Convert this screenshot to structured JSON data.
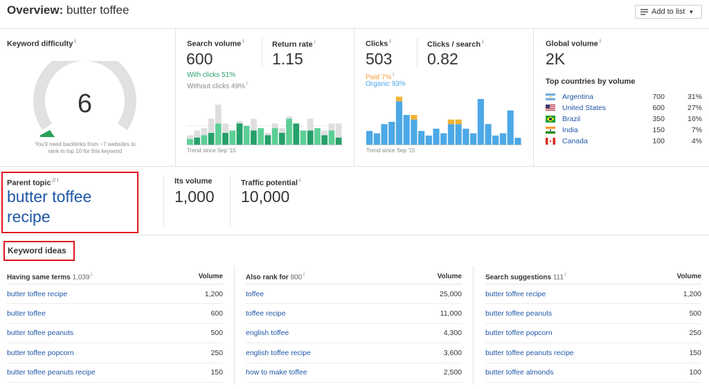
{
  "header": {
    "title_prefix": "Overview:",
    "keyword": "butter toffee",
    "add_to_list": "Add to list"
  },
  "keyword_difficulty": {
    "label": "Keyword difficulty",
    "value": "6",
    "gauge_fraction": 0.06,
    "note_line1": "You'll need backlinks from ~7 websites to",
    "note_line2": "rank in top 10 for this keyword"
  },
  "search_volume": {
    "label": "Search volume",
    "value": "600",
    "with_clicks": "With clicks 51%",
    "without_clicks": "Without clicks 49%",
    "return_rate_label": "Return rate",
    "return_rate": "1.15",
    "trend_caption": "Trend since Sep '15",
    "bars_total": [
      0.2,
      0.3,
      0.35,
      0.55,
      0.85,
      0.45,
      0.3,
      0.5,
      0.4,
      0.55,
      0.35,
      0.25,
      0.45,
      0.35,
      0.6,
      0.45,
      0.3,
      0.55,
      0.35,
      0.3,
      0.45,
      0.45
    ],
    "bars_clicks": [
      0.12,
      0.15,
      0.2,
      0.25,
      0.45,
      0.25,
      0.3,
      0.45,
      0.4,
      0.3,
      0.35,
      0.2,
      0.35,
      0.25,
      0.55,
      0.45,
      0.3,
      0.3,
      0.35,
      0.2,
      0.3,
      0.15
    ]
  },
  "clicks": {
    "label": "Clicks",
    "value": "503",
    "paid": "Paid 7%",
    "organic": "Organic 93%",
    "per_search_label": "Clicks / search",
    "per_search": "0.82",
    "trend_caption": "Trend since Sep '15",
    "bars_organic": [
      0.3,
      0.25,
      0.45,
      0.5,
      0.95,
      0.65,
      0.55,
      0.3,
      0.2,
      0.35,
      0.25,
      0.45,
      0.45,
      0.35,
      0.25,
      1.0,
      0.45,
      0.2,
      0.25,
      0.75,
      0.15
    ],
    "bars_paid": [
      0,
      0,
      0,
      0,
      0.1,
      0,
      0.1,
      0,
      0,
      0,
      0,
      0.1,
      0.1,
      0,
      0,
      0,
      0,
      0,
      0,
      0,
      0
    ]
  },
  "global_volume": {
    "label": "Global volume",
    "value": "2K",
    "countries_title": "Top countries by volume",
    "countries": [
      {
        "name": "Argentina",
        "volume": "700",
        "pct": "31%",
        "flag": "argentina"
      },
      {
        "name": "United States",
        "volume": "600",
        "pct": "27%",
        "flag": "united-states"
      },
      {
        "name": "Brazil",
        "volume": "350",
        "pct": "16%",
        "flag": "brazil"
      },
      {
        "name": "India",
        "volume": "150",
        "pct": "7%",
        "flag": "india"
      },
      {
        "name": "Canada",
        "volume": "100",
        "pct": "4%",
        "flag": "canada"
      }
    ]
  },
  "parent_topic": {
    "label": "Parent topic",
    "beta": "β",
    "line1": "butter toffee",
    "line2": "recipe",
    "its_volume_label": "Its volume",
    "its_volume": "1,000",
    "traffic_potential_label": "Traffic potential",
    "traffic_potential": "10,000"
  },
  "keyword_ideas": {
    "title": "Keyword ideas",
    "volume_header": "Volume",
    "columns": [
      {
        "title": "Having same terms",
        "count": "1,039",
        "rows": [
          [
            "butter toffee recipe",
            "1,200"
          ],
          [
            "butter toffee",
            "600"
          ],
          [
            "butter toffee peanuts",
            "500"
          ],
          [
            "butter toffee popcorn",
            "250"
          ],
          [
            "butter toffee peanuts recipe",
            "150"
          ]
        ]
      },
      {
        "title": "Also rank for",
        "count": "800",
        "rows": [
          [
            "toffee",
            "25,000"
          ],
          [
            "toffee recipe",
            "11,000"
          ],
          [
            "english toffee",
            "4,300"
          ],
          [
            "english toffee recipe",
            "3,600"
          ],
          [
            "how to make toffee",
            "2,500"
          ]
        ]
      },
      {
        "title": "Search suggestions",
        "count": "111",
        "rows": [
          [
            "butter toffee recipe",
            "1,200"
          ],
          [
            "butter toffee peanuts",
            "500"
          ],
          [
            "butter toffee popcorn",
            "250"
          ],
          [
            "butter toffee peanuts recipe",
            "150"
          ],
          [
            "butter toffee almonds",
            "100"
          ]
        ]
      }
    ]
  },
  "colors": {
    "green": "#26a06a",
    "green_light": "#5ccf95",
    "grey_bar": "#dedede",
    "blue": "#4ca8e6",
    "paid": "#f2b233",
    "orange_text": "#f39c34",
    "link": "#1f57a7",
    "highlight_red": "#e0141e",
    "gauge_green": "#2aa05a"
  }
}
